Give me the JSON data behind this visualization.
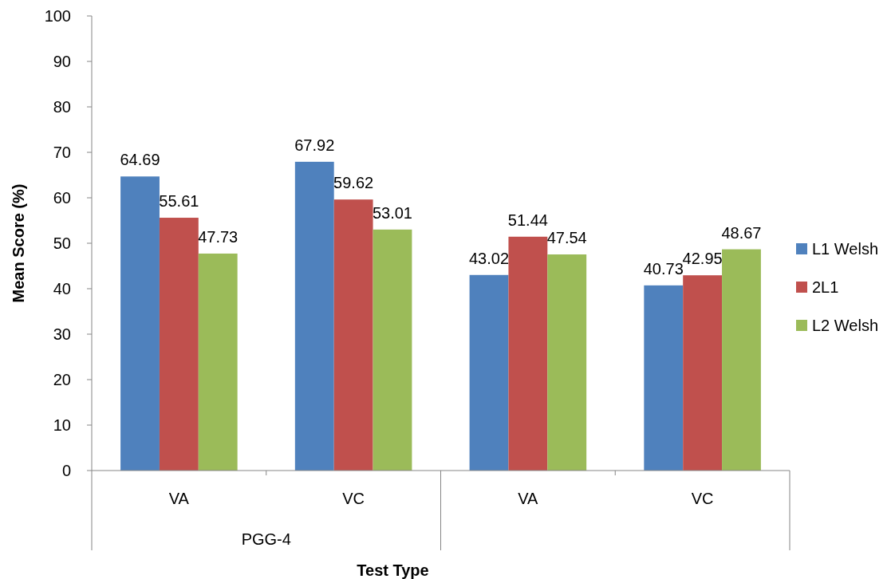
{
  "chart_data": {
    "type": "bar",
    "xlabel": "Test Type",
    "ylabel": "Mean Score (%)",
    "categories": [
      "VA",
      "VC",
      "VA",
      "VC"
    ],
    "annotations": [
      "PGG-4"
    ],
    "series": [
      {
        "name": "L1 Welsh",
        "color": "#4f81bd",
        "values": [
          64.69,
          67.92,
          43.02,
          40.73
        ]
      },
      {
        "name": "2L1",
        "color": "#c0504d",
        "values": [
          55.61,
          59.62,
          51.44,
          42.95
        ]
      },
      {
        "name": "L2 Welsh",
        "color": "#9bbb59",
        "values": [
          47.73,
          53.01,
          47.54,
          48.67
        ]
      }
    ],
    "ylim": [
      0,
      100
    ],
    "yticks": [
      0,
      10,
      20,
      30,
      40,
      50,
      60,
      70,
      80,
      90,
      100
    ],
    "data_labels": true,
    "legend": "right",
    "grid": false
  }
}
